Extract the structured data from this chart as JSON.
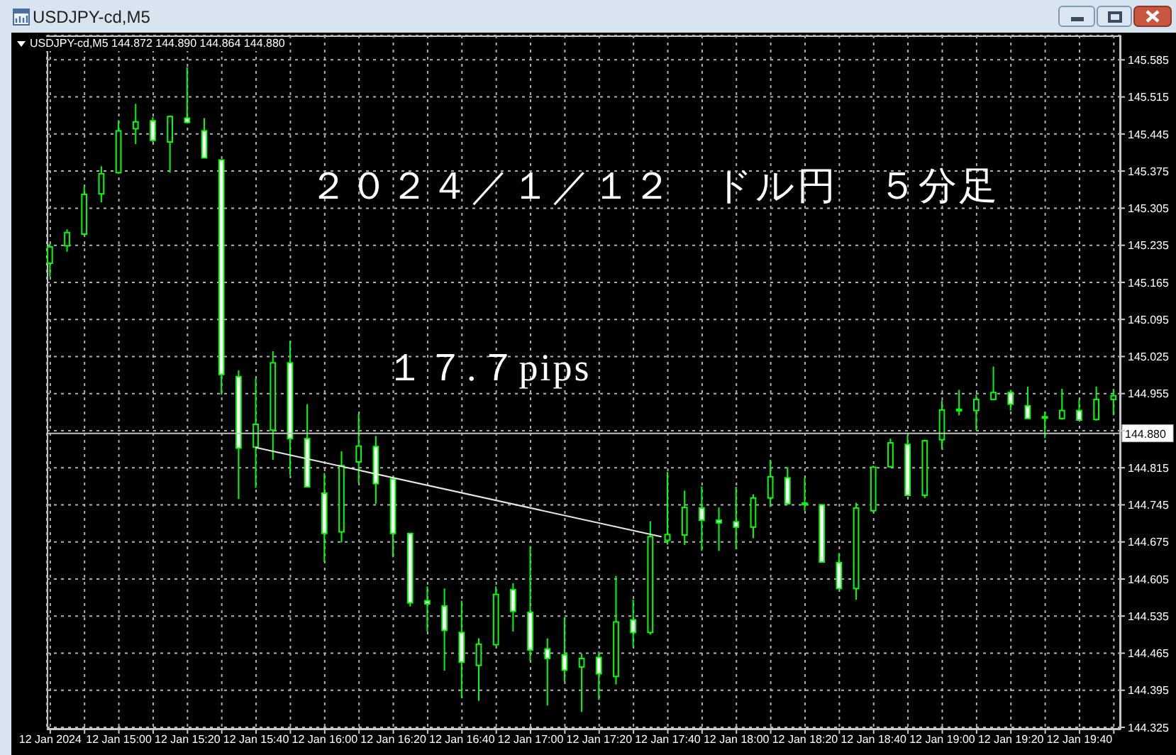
{
  "chart_data": {
    "type": "candlestick",
    "title": "USDJPY-cd,M5",
    "subtitle": "USDJPY-cd,M5 144.872 144.890 144.864 144.880",
    "annotations": [
      "２０２４／１／１２　ドル円　５分足",
      "１７.７pips"
    ],
    "x": [
      "2024-01-12T14:40",
      "2024-01-12T14:45",
      "2024-01-12T14:50",
      "2024-01-12T14:55",
      "2024-01-12T15:00",
      "2024-01-12T15:05",
      "2024-01-12T15:10",
      "2024-01-12T15:15",
      "2024-01-12T15:20",
      "2024-01-12T15:25",
      "2024-01-12T15:30",
      "2024-01-12T15:35",
      "2024-01-12T15:40",
      "2024-01-12T15:45",
      "2024-01-12T15:50",
      "2024-01-12T15:55",
      "2024-01-12T16:00",
      "2024-01-12T16:05",
      "2024-01-12T16:10",
      "2024-01-12T16:15",
      "2024-01-12T16:20",
      "2024-01-12T16:25",
      "2024-01-12T16:30",
      "2024-01-12T16:35",
      "2024-01-12T16:40",
      "2024-01-12T16:45",
      "2024-01-12T16:50",
      "2024-01-12T16:55",
      "2024-01-12T17:00",
      "2024-01-12T17:05",
      "2024-01-12T17:10",
      "2024-01-12T17:15",
      "2024-01-12T17:20",
      "2024-01-12T17:25",
      "2024-01-12T17:30",
      "2024-01-12T17:35",
      "2024-01-12T17:40",
      "2024-01-12T17:45",
      "2024-01-12T17:50",
      "2024-01-12T17:55",
      "2024-01-12T18:00",
      "2024-01-12T18:05",
      "2024-01-12T18:10",
      "2024-01-12T18:15",
      "2024-01-12T18:20",
      "2024-01-12T18:25",
      "2024-01-12T18:30",
      "2024-01-12T18:35",
      "2024-01-12T18:40",
      "2024-01-12T18:45",
      "2024-01-12T18:50",
      "2024-01-12T18:55",
      "2024-01-12T19:00",
      "2024-01-12T19:05",
      "2024-01-12T19:10",
      "2024-01-12T19:15",
      "2024-01-12T19:20",
      "2024-01-12T19:25",
      "2024-01-12T19:30",
      "2024-01-12T19:35",
      "2024-01-12T19:40",
      "2024-01-12T19:45",
      "2024-01-12T19:50"
    ],
    "ohlc": [
      [
        145.201,
        145.238,
        145.176,
        145.232
      ],
      [
        145.234,
        145.265,
        145.223,
        145.259
      ],
      [
        145.256,
        145.346,
        145.254,
        145.331
      ],
      [
        145.332,
        145.384,
        145.316,
        145.37
      ],
      [
        145.372,
        145.471,
        145.37,
        145.451
      ],
      [
        145.455,
        145.502,
        145.426,
        145.468
      ],
      [
        145.47,
        145.477,
        145.43,
        145.433
      ],
      [
        145.43,
        145.48,
        145.372,
        145.478
      ],
      [
        145.475,
        145.571,
        145.467,
        145.467
      ],
      [
        145.451,
        145.475,
        145.4,
        145.4
      ],
      [
        145.396,
        145.396,
        144.953,
        144.991
      ],
      [
        144.987,
        144.999,
        144.756,
        144.852
      ],
      [
        144.854,
        144.984,
        144.777,
        144.897
      ],
      [
        144.886,
        145.035,
        144.83,
        145.013
      ],
      [
        145.013,
        145.054,
        144.801,
        144.87
      ],
      [
        144.87,
        144.935,
        144.779,
        144.779
      ],
      [
        144.767,
        144.805,
        144.637,
        144.691
      ],
      [
        144.694,
        144.846,
        144.674,
        144.819
      ],
      [
        144.826,
        144.917,
        144.786,
        144.856
      ],
      [
        144.855,
        144.875,
        144.747,
        144.785
      ],
      [
        144.794,
        144.794,
        144.646,
        144.691
      ],
      [
        144.691,
        144.691,
        144.553,
        144.56
      ],
      [
        144.564,
        144.591,
        144.506,
        144.558
      ],
      [
        144.554,
        144.587,
        144.432,
        144.508
      ],
      [
        144.504,
        144.564,
        144.381,
        144.448
      ],
      [
        144.442,
        144.493,
        144.375,
        144.482
      ],
      [
        144.481,
        144.591,
        144.479,
        144.576
      ],
      [
        144.585,
        144.597,
        144.506,
        144.544
      ],
      [
        144.542,
        144.667,
        144.45,
        144.471
      ],
      [
        144.473,
        144.493,
        144.366,
        144.455
      ],
      [
        144.462,
        144.533,
        144.411,
        144.433
      ],
      [
        144.439,
        144.464,
        144.354,
        144.455
      ],
      [
        144.457,
        144.468,
        144.377,
        144.426
      ],
      [
        144.421,
        144.611,
        144.406,
        144.524
      ],
      [
        144.528,
        144.566,
        144.478,
        144.504
      ],
      [
        144.504,
        144.714,
        144.5,
        144.685
      ],
      [
        144.678,
        144.807,
        144.67,
        144.689
      ],
      [
        144.688,
        144.772,
        144.669,
        144.74
      ],
      [
        144.739,
        144.78,
        144.658,
        144.716
      ],
      [
        144.716,
        144.74,
        144.658,
        144.711
      ],
      [
        144.713,
        144.779,
        144.661,
        144.703
      ],
      [
        144.703,
        144.765,
        144.682,
        144.758
      ],
      [
        144.758,
        144.83,
        144.741,
        144.798
      ],
      [
        144.796,
        144.816,
        144.745,
        144.747
      ],
      [
        144.747,
        144.796,
        144.734,
        144.747
      ],
      [
        144.745,
        144.745,
        144.637,
        144.637
      ],
      [
        144.636,
        144.654,
        144.587,
        144.587
      ],
      [
        144.587,
        144.749,
        144.566,
        144.739
      ],
      [
        144.734,
        144.819,
        144.731,
        144.816
      ],
      [
        144.817,
        144.87,
        144.815,
        144.862
      ],
      [
        144.859,
        144.877,
        144.763,
        144.763
      ],
      [
        144.763,
        144.868,
        144.758,
        144.866
      ],
      [
        144.868,
        144.942,
        144.85,
        144.924
      ],
      [
        144.924,
        144.962,
        144.914,
        144.924
      ],
      [
        144.923,
        144.953,
        144.886,
        144.944
      ],
      [
        144.944,
        145.006,
        144.944,
        144.957
      ],
      [
        144.957,
        144.962,
        144.923,
        144.935
      ],
      [
        144.932,
        144.968,
        144.908,
        144.908
      ],
      [
        144.91,
        144.921,
        144.871,
        144.91
      ],
      [
        144.908,
        144.964,
        144.906,
        144.923
      ],
      [
        144.923,
        144.944,
        144.904,
        144.905
      ],
      [
        144.906,
        144.968,
        144.904,
        144.944
      ],
      [
        144.944,
        144.964,
        144.914,
        144.951
      ]
    ],
    "color": "#00ff00",
    "colors": [
      "#000000",
      "#000000",
      "#000000",
      "#000000",
      "#000000",
      "#000000",
      "#ffffff",
      "#000000",
      "#ffffff",
      "#ffffff",
      "#ffffff",
      "#ffffff",
      "#000000",
      "#000000",
      "#ffffff",
      "#ffffff",
      "#ffffff",
      "#000000",
      "#000000",
      "#ffffff",
      "#ffffff",
      "#ffffff",
      "#ffffff",
      "#ffffff",
      "#ffffff",
      "#000000",
      "#000000",
      "#ffffff",
      "#ffffff",
      "#ffffff",
      "#ffffff",
      "#000000",
      "#ffffff",
      "#000000",
      "#ffffff",
      "#000000",
      "#000000",
      "#000000",
      "#ffffff",
      "#ffffff",
      "#ffffff",
      "#000000",
      "#000000",
      "#ffffff",
      "#000000",
      "#ffffff",
      "#ffffff",
      "#000000",
      "#000000",
      "#000000",
      "#ffffff",
      "#000000",
      "#000000",
      "#000000",
      "#000000",
      "#000000",
      "#ffffff",
      "#ffffff",
      "#000000",
      "#000000",
      "#ffffff",
      "#000000",
      "#000000"
    ],
    "series": [
      {
        "type": "line",
        "x": [
          "2024-01-12T15:40",
          "2024-01-12T17:38"
        ],
        "values": [
          144.853,
          144.685
        ],
        "color": "#e6e6e6"
      }
    ],
    "xlim": [
      "2024-01-12T14:39",
      "2024-01-12T19:52"
    ],
    "xticks": [
      {
        "value": "2024-01-12T14:40",
        "label": "12 Jan 2024"
      },
      {
        "value": "2024-01-12T14:50",
        "label": null
      },
      {
        "value": "2024-01-12T15:00",
        "label": "12 Jan 15:00"
      },
      {
        "value": "2024-01-12T15:10",
        "label": null
      },
      {
        "value": "2024-01-12T15:20",
        "label": "12 Jan 15:20"
      },
      {
        "value": "2024-01-12T15:30",
        "label": null
      },
      {
        "value": "2024-01-12T15:40",
        "label": "12 Jan 15:40"
      },
      {
        "value": "2024-01-12T15:50",
        "label": null
      },
      {
        "value": "2024-01-12T16:00",
        "label": "12 Jan 16:00"
      },
      {
        "value": "2024-01-12T16:10",
        "label": null
      },
      {
        "value": "2024-01-12T16:20",
        "label": "12 Jan 16:20"
      },
      {
        "value": "2024-01-12T16:30",
        "label": null
      },
      {
        "value": "2024-01-12T16:40",
        "label": "12 Jan 16:40"
      },
      {
        "value": "2024-01-12T16:50",
        "label": null
      },
      {
        "value": "2024-01-12T17:00",
        "label": "12 Jan 17:00"
      },
      {
        "value": "2024-01-12T17:10",
        "label": null
      },
      {
        "value": "2024-01-12T17:20",
        "label": "12 Jan 17:20"
      },
      {
        "value": "2024-01-12T17:30",
        "label": null
      },
      {
        "value": "2024-01-12T17:40",
        "label": "12 Jan 17:40"
      },
      {
        "value": "2024-01-12T17:50",
        "label": null
      },
      {
        "value": "2024-01-12T18:00",
        "label": "12 Jan 18:00"
      },
      {
        "value": "2024-01-12T18:10",
        "label": null
      },
      {
        "value": "2024-01-12T18:20",
        "label": "12 Jan 18:20"
      },
      {
        "value": "2024-01-12T18:30",
        "label": null
      },
      {
        "value": "2024-01-12T18:40",
        "label": "12 Jan 18:40"
      },
      {
        "value": "2024-01-12T18:50",
        "label": null
      },
      {
        "value": "2024-01-12T19:00",
        "label": "12 Jan 19:00"
      },
      {
        "value": "2024-01-12T19:10",
        "label": null
      },
      {
        "value": "2024-01-12T19:20",
        "label": "12 Jan 19:20"
      },
      {
        "value": "2024-01-12T19:30",
        "label": null
      },
      {
        "value": "2024-01-12T19:40",
        "label": "12 Jan 19:40"
      },
      {
        "value": "2024-01-12T19:50",
        "label": null
      }
    ],
    "ylim": [
      144.321,
      145.631
    ],
    "yticks": [
      144.325,
      144.395,
      144.465,
      144.535,
      144.605,
      144.675,
      144.745,
      144.815,
      {
        "value": 144.885,
        "label": null
      },
      144.955,
      145.025,
      145.095,
      145.165,
      145.235,
      145.305,
      145.375,
      145.445,
      145.515,
      145.585
    ],
    "ref_lines": [
      {
        "axis": "y",
        "value": 144.88,
        "label": "144.880",
        "color": "#c0c0c0"
      }
    ],
    "grid": true
  }
}
